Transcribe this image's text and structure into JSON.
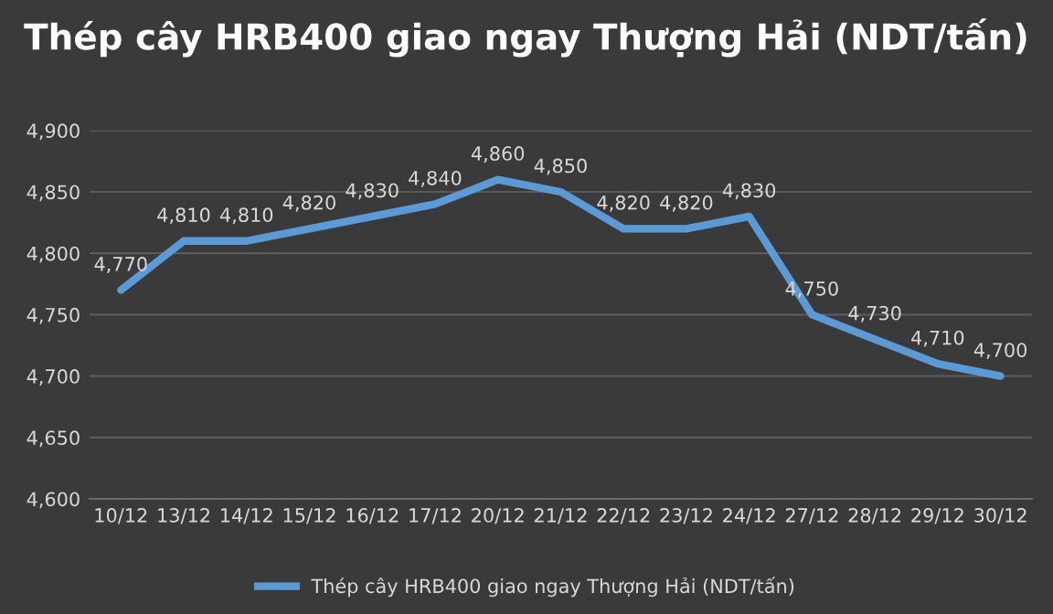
{
  "chart_data": {
    "type": "line",
    "title": "Thép cây HRB400 giao ngay Thượng Hải (NDT/tấn)",
    "categories": [
      "10/12",
      "13/12",
      "14/12",
      "15/12",
      "16/12",
      "17/12",
      "20/12",
      "21/12",
      "22/12",
      "23/12",
      "24/12",
      "27/12",
      "28/12",
      "29/12",
      "30/12"
    ],
    "series": [
      {
        "name": "Thép cây HRB400 giao ngay Thượng Hải (NDT/tấn)",
        "color": "#5b9bd5",
        "values": [
          4770,
          4810,
          4810,
          4820,
          4830,
          4840,
          4860,
          4850,
          4820,
          4820,
          4830,
          4750,
          4730,
          4710,
          4700
        ],
        "value_labels": [
          "4,770",
          "4,810",
          "4,810",
          "4,820",
          "4,830",
          "4,840",
          "4,860",
          "4,850",
          "4,820",
          "4,820",
          "4,830",
          "4,750",
          "4,730",
          "4,710",
          "4,700"
        ]
      }
    ],
    "ylim": [
      4600,
      4900
    ],
    "yticks": [
      {
        "value": 4600,
        "label": "4,600"
      },
      {
        "value": 4650,
        "label": "4,650"
      },
      {
        "value": 4700,
        "label": "4,700"
      },
      {
        "value": 4750,
        "label": "4,750"
      },
      {
        "value": 4800,
        "label": "4,800"
      },
      {
        "value": 4850,
        "label": "4,850"
      },
      {
        "value": 4900,
        "label": "4,900"
      }
    ],
    "grid": "y",
    "legend": "bottom",
    "marker": "none",
    "line_style": "solid"
  }
}
